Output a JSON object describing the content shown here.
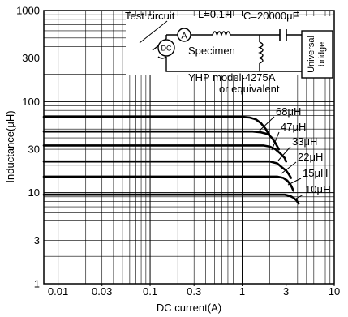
{
  "chart_data": {
    "type": "line",
    "title": "",
    "xlabel": "DC current(A)",
    "ylabel": "Inductance(μH)",
    "xscale": "log",
    "yscale": "log",
    "xlim": [
      0.007,
      10
    ],
    "ylim": [
      1,
      1000
    ],
    "grid": true,
    "x_ticks": [
      0.01,
      0.03,
      0.1,
      0.3,
      1,
      3,
      10
    ],
    "x_tick_labels": [
      "0.01",
      "0.03",
      "0.1",
      "0.3",
      "1",
      "3",
      "10"
    ],
    "y_ticks": [
      1,
      3,
      10,
      30,
      100,
      300,
      1000
    ],
    "y_tick_labels": [
      "1",
      "3",
      "10",
      "30",
      "100",
      "300",
      "1000"
    ],
    "series": [
      {
        "name": "68μH",
        "x": [
          0.007,
          1.0,
          1.2,
          1.4,
          1.6,
          1.8,
          2.0
        ],
        "y": [
          68,
          68,
          67,
          64,
          58,
          50,
          42
        ]
      },
      {
        "name": "47μH",
        "x": [
          0.007,
          1.3,
          1.6,
          1.9,
          2.1,
          2.3,
          2.5
        ],
        "y": [
          47,
          47,
          46,
          44,
          40,
          35,
          30
        ]
      },
      {
        "name": "33μH",
        "x": [
          0.007,
          1.7,
          2.0,
          2.3,
          2.6,
          2.9,
          3.0
        ],
        "y": [
          33,
          33,
          32,
          30,
          27,
          24,
          22
        ]
      },
      {
        "name": "22μH",
        "x": [
          0.007,
          2.0,
          2.4,
          2.7,
          3.0,
          3.2,
          3.4
        ],
        "y": [
          22,
          22,
          21,
          19,
          17.5,
          16,
          14.5
        ]
      },
      {
        "name": "15μH",
        "x": [
          0.007,
          2.4,
          2.8,
          3.1,
          3.4,
          3.6
        ],
        "y": [
          15,
          15,
          14.5,
          13.5,
          12,
          10.5
        ]
      },
      {
        "name": "10μH",
        "x": [
          0.007,
          2.9,
          3.3,
          3.6,
          3.9,
          4.1
        ],
        "y": [
          9.5,
          9.5,
          9.2,
          8.8,
          8.2,
          7.6
        ]
      }
    ],
    "series_labels": [
      "68μH",
      "47μH",
      "33μH",
      "22μH",
      "15μH",
      "10μH"
    ]
  },
  "inset": {
    "test_circuit": "Test circuit",
    "inductor": "L=0.1H",
    "capacitor": "C=20000μF",
    "ammeter_symbol": "A",
    "dc_source_symbol": "DC",
    "specimen": "Specimen",
    "bridge_line1": "Universal",
    "bridge_line2": "bridge",
    "instrument_line1": "YHP model-4275A",
    "instrument_line2": "or equivalent"
  }
}
